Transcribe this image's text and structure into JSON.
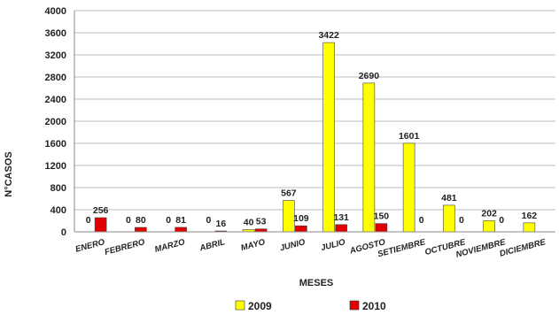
{
  "chart_data": {
    "type": "bar",
    "categories": [
      "ENERO",
      "FEBRERO",
      "MARZO",
      "ABRIL",
      "MAYO",
      "JUNIO",
      "JULIO",
      "AGOSTO",
      "SETIEMBRE",
      "OCTUBRE",
      "NOVIEMBRE",
      "DICIEMBRE"
    ],
    "series": [
      {
        "name": "2009",
        "color": "#ffff00",
        "values": [
          0,
          0,
          0,
          0,
          40,
          567,
          3422,
          2690,
          1601,
          481,
          202,
          162
        ]
      },
      {
        "name": "2010",
        "color": "#e00000",
        "values": [
          256,
          80,
          81,
          16,
          53,
          109,
          131,
          150,
          0,
          0,
          0,
          null
        ]
      }
    ],
    "data_labels": {
      "2009": [
        "0",
        "0",
        "0",
        "0",
        "40",
        "567",
        "3422",
        "2690",
        "1601",
        "481",
        "202",
        "162"
      ],
      "2010": [
        "256",
        "80",
        "81",
        "16",
        "53",
        "109",
        "131",
        "150",
        "0",
        "0",
        "0",
        ""
      ]
    },
    "xlabel": "MESES",
    "ylabel": "N°CASOS",
    "ylim": [
      0,
      4000
    ],
    "yticks": [
      "0",
      "400",
      "800",
      "1200",
      "1600",
      "2000",
      "2400",
      "2800",
      "3200",
      "3600",
      "4000"
    ],
    "grid": true,
    "legend_position": "bottom"
  }
}
